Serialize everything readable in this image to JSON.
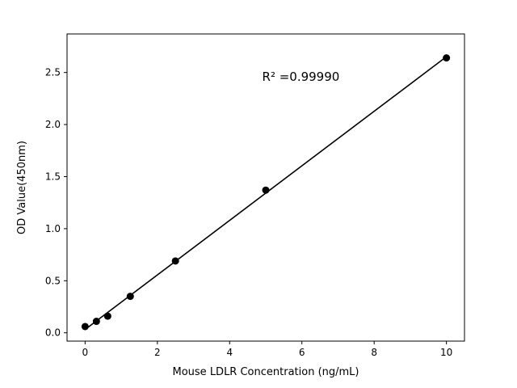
{
  "chart_data": {
    "type": "scatter",
    "title": "",
    "xlabel": "Mouse LDLR Concentration (ng/mL)",
    "ylabel": "OD Value(450nm)",
    "annotation": {
      "text": "R² =0.99990",
      "x": 4.9,
      "y": 2.42
    },
    "x": [
      0,
      0.3125,
      0.625,
      1.25,
      2.5,
      5,
      10
    ],
    "y": [
      0.06,
      0.11,
      0.16,
      0.35,
      0.69,
      1.37,
      2.64
    ],
    "xlim": [
      -0.5,
      10.5
    ],
    "ylim": [
      -0.08,
      2.87
    ],
    "xticks": [
      0,
      2,
      4,
      6,
      8,
      10
    ],
    "xtick_labels": [
      "0",
      "2",
      "4",
      "6",
      "8",
      "10"
    ],
    "yticks": [
      0.0,
      0.5,
      1.0,
      1.5,
      2.0,
      2.5
    ],
    "ytick_labels": [
      "0.0",
      "0.5",
      "1.0",
      "1.5",
      "2.0",
      "2.5"
    ],
    "marker_color": "#000000",
    "line_color": "#000000",
    "grid": false,
    "legend": null,
    "fit": "linear-least-squares"
  }
}
